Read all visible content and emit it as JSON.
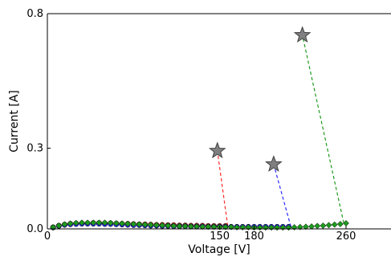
{
  "chart_data": {
    "type": "scatter",
    "title": "",
    "xlabel": "Voltage [V]",
    "ylabel": "Current [A]",
    "xlim": [
      0,
      300
    ],
    "ylim": [
      0,
      0.8
    ],
    "xticks": [
      0,
      150,
      180,
      260
    ],
    "xtick_labels": [
      "0",
      "150",
      "180",
      "260"
    ],
    "yticks": [
      0.0,
      0.3,
      0.8
    ],
    "ytick_labels": [
      "0.0",
      "0.3",
      "0.8"
    ],
    "grid": false,
    "series": [
      {
        "color": "#ff2a2a",
        "marker": "circle",
        "x": [
          5,
          10,
          15,
          20,
          25,
          30,
          35,
          40,
          45,
          50,
          55,
          60,
          65,
          70,
          75,
          80,
          85,
          90,
          95,
          100,
          105,
          110,
          115,
          120,
          125,
          130,
          135,
          140,
          145,
          150,
          155
        ],
        "y": [
          0.006,
          0.012,
          0.016,
          0.019,
          0.02,
          0.021,
          0.021,
          0.022,
          0.022,
          0.021,
          0.021,
          0.02,
          0.019,
          0.019,
          0.018,
          0.017,
          0.017,
          0.016,
          0.015,
          0.015,
          0.014,
          0.014,
          0.013,
          0.013,
          0.012,
          0.012,
          0.012,
          0.011,
          0.011,
          0.011,
          0.011
        ]
      },
      {
        "color": "#2a2aff",
        "marker": "circle",
        "x": [
          5,
          10,
          15,
          20,
          25,
          30,
          35,
          40,
          45,
          50,
          55,
          60,
          65,
          70,
          75,
          80,
          85,
          90,
          95,
          100,
          105,
          110,
          115,
          120,
          125,
          130,
          135,
          140,
          145,
          150,
          155,
          160,
          165,
          170,
          175,
          180,
          185,
          190,
          195,
          200,
          205,
          210
        ],
        "y": [
          0.005,
          0.011,
          0.015,
          0.017,
          0.018,
          0.019,
          0.019,
          0.019,
          0.019,
          0.018,
          0.018,
          0.017,
          0.016,
          0.015,
          0.014,
          0.014,
          0.013,
          0.012,
          0.012,
          0.011,
          0.011,
          0.01,
          0.01,
          0.01,
          0.009,
          0.009,
          0.009,
          0.008,
          0.008,
          0.008,
          0.008,
          0.008,
          0.008,
          0.008,
          0.008,
          0.008,
          0.008,
          0.008,
          0.008,
          0.008,
          0.008,
          0.008
        ]
      },
      {
        "color": "#1e9a1e",
        "marker": "diamond",
        "x": [
          5,
          10,
          15,
          20,
          25,
          30,
          35,
          40,
          45,
          50,
          55,
          60,
          65,
          70,
          75,
          80,
          85,
          90,
          95,
          100,
          105,
          110,
          115,
          120,
          125,
          130,
          135,
          140,
          145,
          150,
          155,
          160,
          165,
          170,
          175,
          180,
          185,
          190,
          195,
          200,
          205,
          210,
          215,
          220,
          225,
          230,
          235,
          240,
          245,
          250,
          255,
          260
        ],
        "y": [
          0.006,
          0.012,
          0.017,
          0.02,
          0.022,
          0.023,
          0.023,
          0.023,
          0.023,
          0.023,
          0.022,
          0.021,
          0.02,
          0.019,
          0.018,
          0.017,
          0.016,
          0.015,
          0.014,
          0.013,
          0.012,
          0.011,
          0.01,
          0.01,
          0.009,
          0.009,
          0.008,
          0.008,
          0.008,
          0.007,
          0.007,
          0.007,
          0.006,
          0.006,
          0.006,
          0.005,
          0.005,
          0.005,
          0.005,
          0.005,
          0.005,
          0.005,
          0.006,
          0.007,
          0.008,
          0.009,
          0.011,
          0.012,
          0.014,
          0.016,
          0.018,
          0.021
        ]
      }
    ],
    "breakdown_points": [
      {
        "color": "#ff2a2a",
        "x": 148,
        "y": 0.29,
        "from_x": 157,
        "from_y": 0.011
      },
      {
        "color": "#2a2aff",
        "x": 197,
        "y": 0.24,
        "from_x": 212,
        "from_y": 0.008
      },
      {
        "color": "#1e9a1e",
        "x": 222,
        "y": 0.72,
        "from_x": 258,
        "from_y": 0.022
      }
    ],
    "star_color": "#808080"
  }
}
